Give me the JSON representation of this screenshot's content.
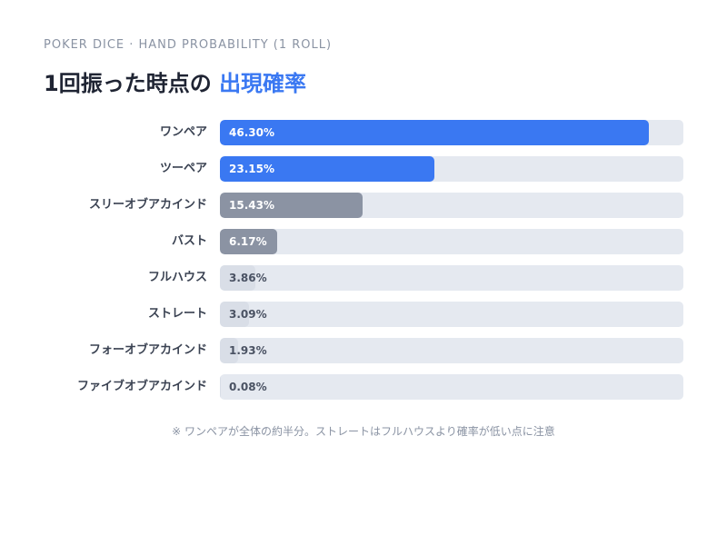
{
  "header": {
    "kicker": "POKER DICE · HAND PROBABILITY (1 ROLL)",
    "title_main": "1回振った時点の",
    "title_accent": "出現確率"
  },
  "chart_data": {
    "type": "bar",
    "orientation": "horizontal",
    "categories": [
      "ワンペア",
      "ツーペア",
      "スリーオブアカインド",
      "バスト",
      "フルハウス",
      "ストレート",
      "フォーオブアカインド",
      "ファイブオブアカインド"
    ],
    "values": [
      46.3,
      23.15,
      15.43,
      6.17,
      3.86,
      3.09,
      1.93,
      0.08
    ],
    "value_labels": [
      "46.30%",
      "23.15%",
      "15.43%",
      "6.17%",
      "3.86%",
      "3.09%",
      "1.93%",
      "0.08%"
    ],
    "xlim": [
      0,
      50
    ],
    "bar_colors": [
      "#3a78f2",
      "#3a78f2",
      "#8b93a3",
      "#8b93a3",
      "#d9dee7",
      "#d9dee7",
      "#d9dee7",
      "#d9dee7"
    ],
    "value_text_colors": [
      "#ffffff",
      "#ffffff",
      "#ffffff",
      "#ffffff",
      "#4a5263",
      "#4a5263",
      "#4a5263",
      "#4a5263"
    ],
    "track_color": "#e5e9f0",
    "grid": false,
    "legend": "none"
  },
  "note": "※ ワンペアが全体の約半分。ストレートはフルハウスより確率が低い点に注意"
}
